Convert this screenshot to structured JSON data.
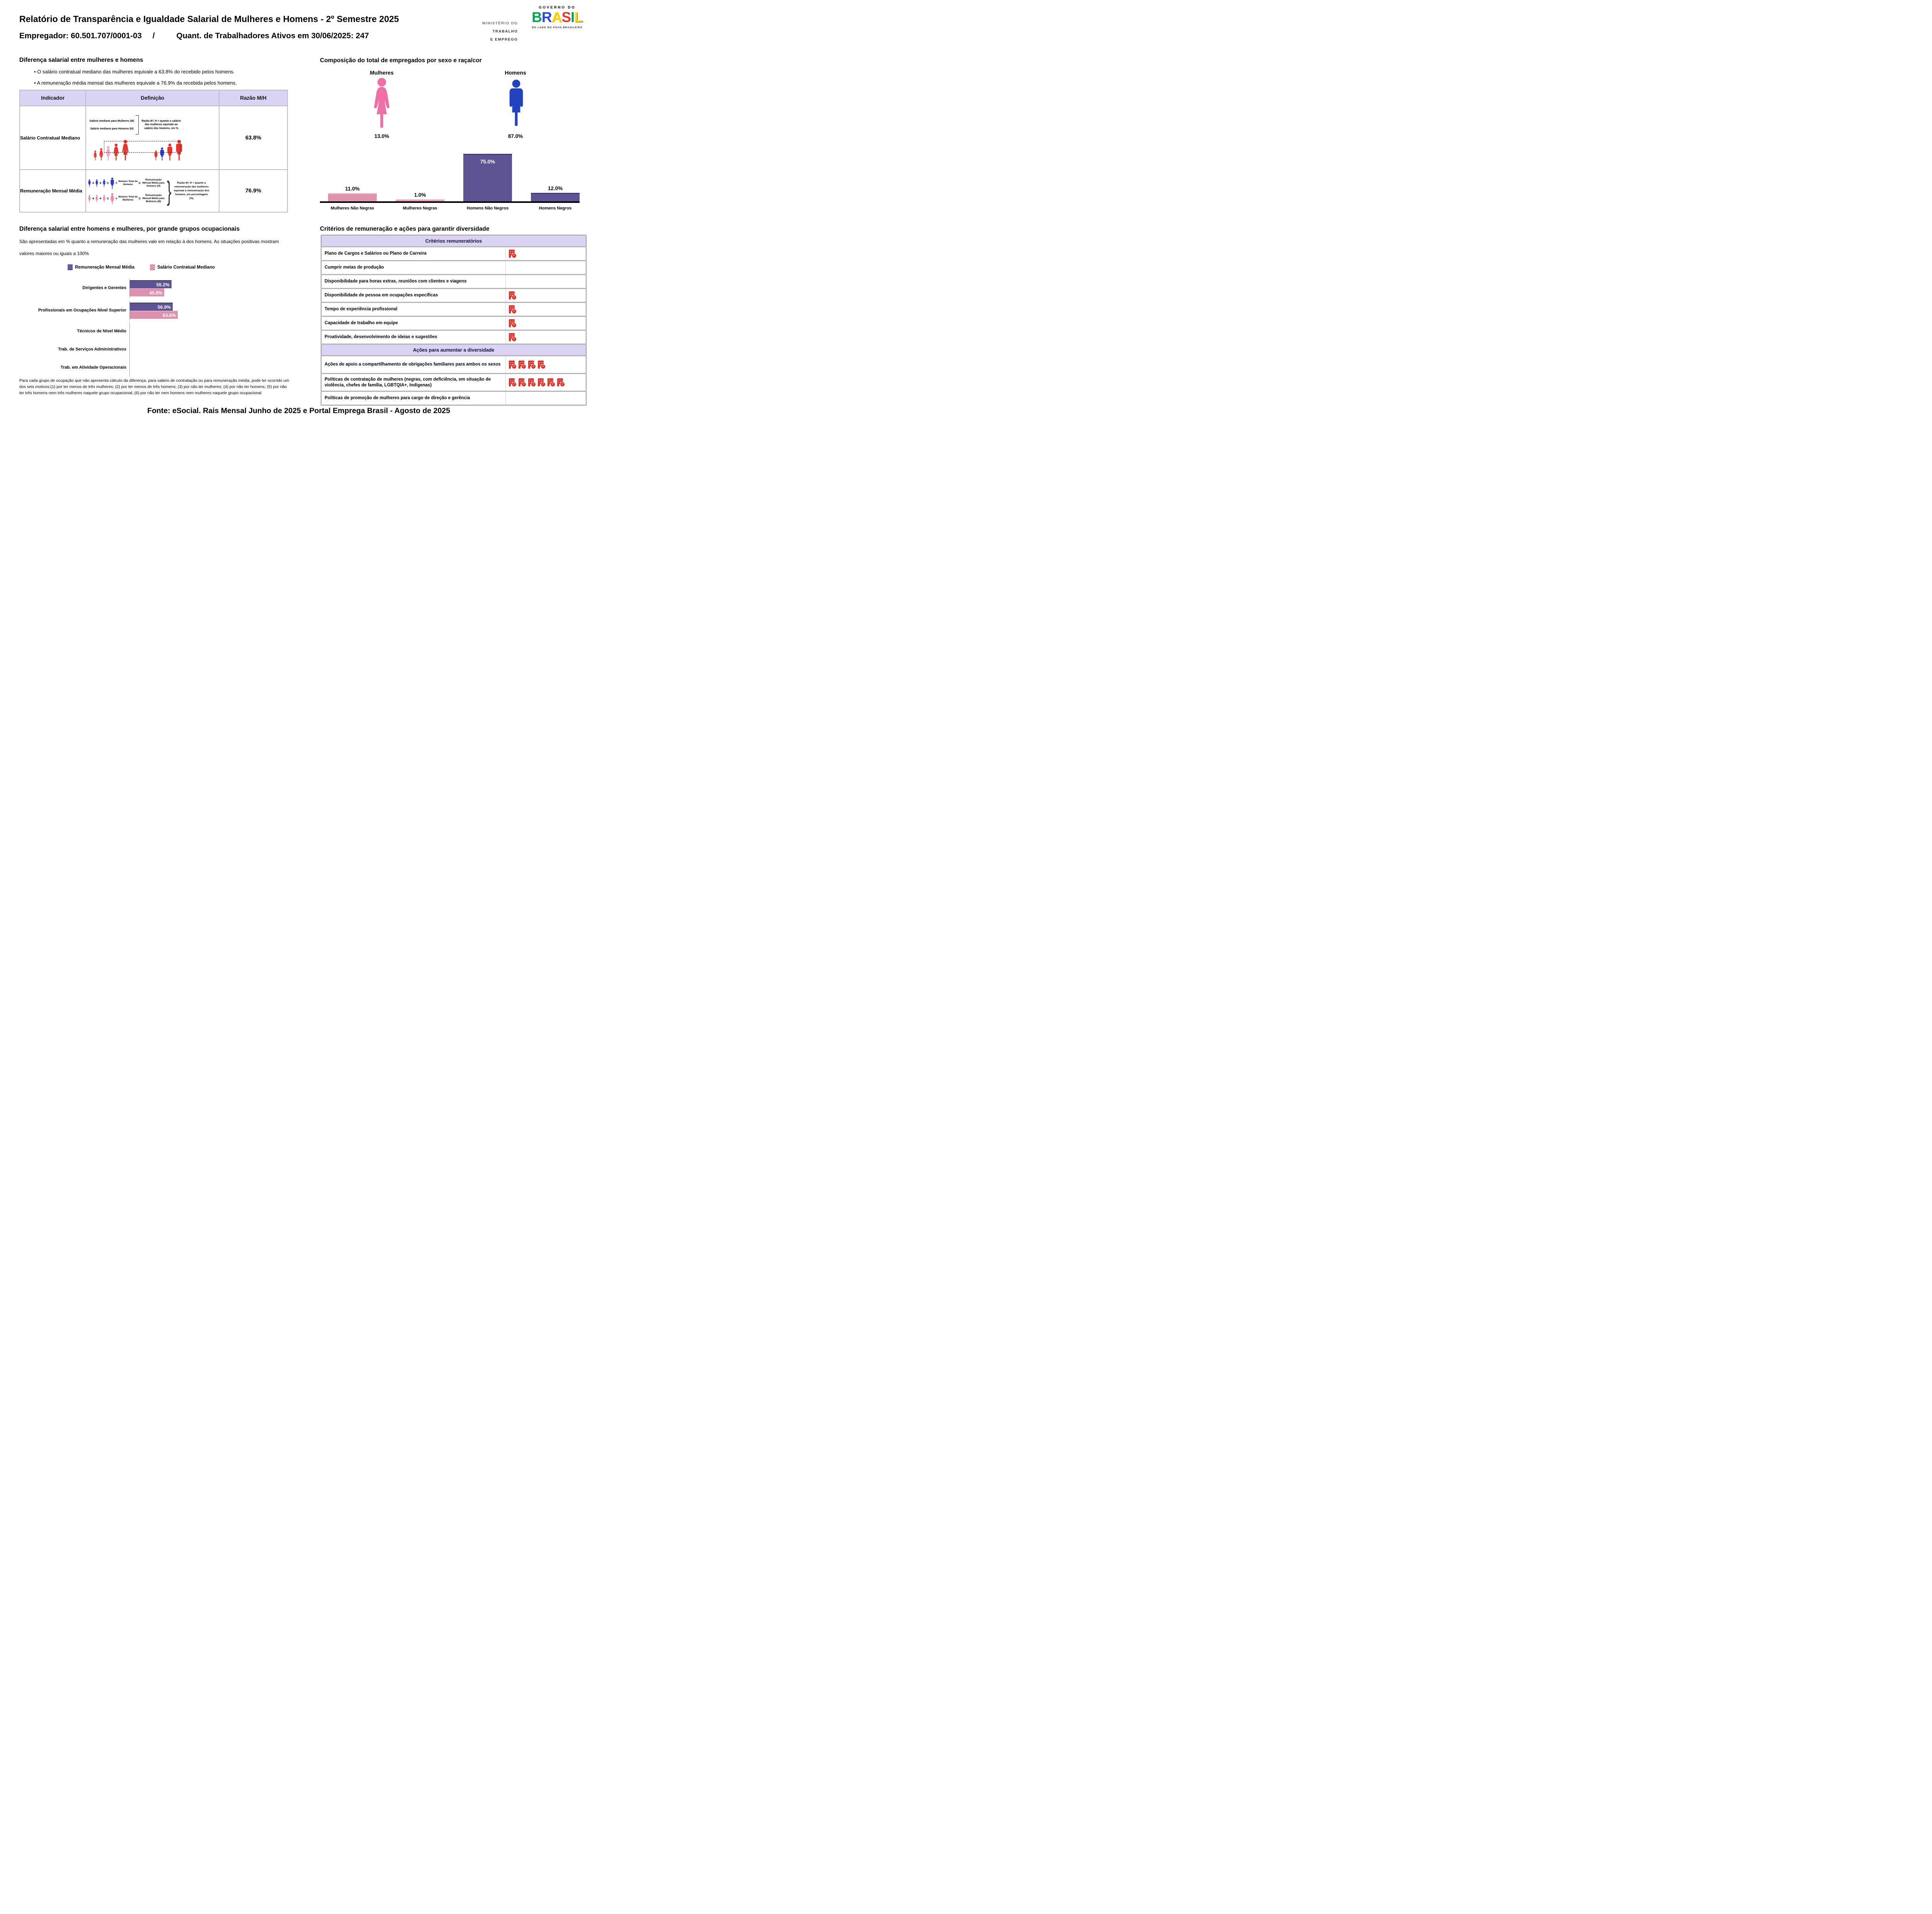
{
  "header": {
    "title": "Relatório de Transparência e Igualdade Salarial de Mulheres e Homens - 2º Semestre 2025",
    "employer": "Empregador: 60.501.707/0001-03",
    "separator": "/",
    "workers": "Quant. de Trabalhadores Ativos em 30/06/2025: 247"
  },
  "logos": {
    "ministry_line1": "MINISTÉRIO DO",
    "ministry_line2": "TRABALHO",
    "ministry_line3": "E EMPREGO",
    "gov_top": "GOVERNO DO",
    "gov_letters": [
      "B",
      "R",
      "A",
      "S",
      "I",
      "L"
    ],
    "gov_tagline": "DO LADO DO POVO BRASILEIRO",
    "brand_colors": {
      "green": "#00a651",
      "blue": "#2b46d9",
      "yellow": "#ffd400",
      "red": "#e23a2e"
    }
  },
  "salary_gap": {
    "heading": "Diferença salarial entre mulheres e homens",
    "bullets": [
      "• O salário contratual mediano das mulheres equivale a 63.8% do recebido pelos homens.",
      "• A remuneração média mensal das mulheres equivale a 76.9% da recebida pelos homens."
    ],
    "table": {
      "headers": [
        "Indicador",
        "Definição",
        "Razão M/H"
      ],
      "rows": [
        {
          "indicator": "Salário Contratual Mediano",
          "ratio": "63.8%",
          "diagram": {
            "line_m": "Salário mediano para Mulheres (M)",
            "line_h": "Salário mediano para Homens (H)",
            "explain": "Razão M / H = quanto o salário das mulheres equivale ao salário dos homens, em %"
          }
        },
        {
          "indicator": "Remuneração Mensal Média",
          "ratio": "76.9%",
          "diagram": {
            "h_label1": "Número Total de Homens",
            "h_label2": "Remuneração Mensal Média para Homens (H)",
            "m_label1": "Número Total de Mulheres",
            "m_label2": "Remuneração Mensal Média para Mulheres (M)",
            "explain": "Razão M / H = quanto a remuneração das mulheres equivale à remuneração dos homens, em porcentagem (%)",
            "plus": "+",
            "equals": "=",
            "divide": "÷"
          }
        }
      ]
    }
  },
  "composition": {
    "heading": "Composição do total de empregados por sexo e raça/cor",
    "female": {
      "label": "Mulheres",
      "value": "13.0%"
    },
    "male": {
      "label": "Homens",
      "value": "87.0%"
    }
  },
  "occupational": {
    "heading": "Diferença salarial entre homens e mulheres, por grande grupos ocupacionais",
    "description": "São apresentadas em % quanto a remuneração das mulheres vale em relação à dos homens. As situações positivas mostram valores maiores ou iguais a 100%",
    "footnote": "Para cada grupo de ocupação que não apresenta cálculo da diferença, para salário de contratação ou para remuneração média, pode ter ocorrido um dos seis motivos:(1) por ter menos de três mulheres; (2) por ter menos de três homens; (3) por não ter mulheres; (4) por não ter homens; (5) por não ter três homens nem três mulheres naquele grupo ocupacional; (6) por não ter nem homens nem mulheres naquele grupo ocupacional"
  },
  "criteria": {
    "heading": "Critérios de remuneração e ações para garantir diversidade",
    "section1": "Critérios remuneratórios",
    "rows1": [
      {
        "label": "Plano de Cargos e Salários ou Plano de Carreira",
        "checks": 1
      },
      {
        "label": "Cumprir metas de produção",
        "checks": 0
      },
      {
        "label": "Disponibilidade para horas extras, reuniões com clientes e viagens",
        "checks": 0
      },
      {
        "label": "Disponibilidade de pessoa em ocupações específicas",
        "checks": 1
      },
      {
        "label": "Tempo de experiência profissional",
        "checks": 1
      },
      {
        "label": "Capacidade de trabalho em equipe",
        "checks": 1
      },
      {
        "label": "Proatividade, desenvolvimento de ideias e sugestões",
        "checks": 1
      }
    ],
    "section2": "Ações para aumentar a diversidade",
    "rows2": [
      {
        "label": "Ações de apoio a compartilhamento de obrigações familiares para ambos os sexos",
        "checks": 4
      },
      {
        "label": "Políticas de contratação de mulheres (negras, com deficiência, em situação de violência, chefes de família, LGBTQIA+, Indígenas)",
        "checks": 6
      },
      {
        "label": "Políticas de promoção de mulheres para cargo de direção e gerência",
        "checks": 0
      }
    ]
  },
  "footer": "Fonte: eSocial. Rais Mensal Junho de 2025 e Portal Emprega Brasil - Agosto de 2025",
  "chart_data": [
    {
      "id": "composition-by-sex-race",
      "type": "bar",
      "title": "Composição do total de empregados por sexo e raça/cor",
      "categories": [
        "Mulheres Não Negras",
        "Mulheres Negras",
        "Homens Não Negros",
        "Homens Negros"
      ],
      "values": [
        11.0,
        1.0,
        75.0,
        12.0
      ],
      "value_labels": [
        "11.0%",
        "1.0%",
        "75.0%",
        "12.0%"
      ],
      "bar_colors": [
        "#df93ad",
        "#df93ad",
        "#5e5494",
        "#5e5494"
      ],
      "summary_values": {
        "Mulheres": 13.0,
        "Homens": 87.0
      },
      "xlabel": "",
      "ylabel": "",
      "ylim": [
        0,
        80
      ],
      "grid": false
    },
    {
      "id": "gap-by-occupational-group",
      "type": "bar-horizontal",
      "title": "Diferença salarial entre homens e mulheres, por grande grupos ocupacionais",
      "categories": [
        "Dirigentes e Gerentes",
        "Profissionais em Ocupações Nível Superior",
        "Técnicos de Nível Médio",
        "Trab. de Serviços Administrativos",
        "Trab. em Atividade Operacionais"
      ],
      "series": [
        {
          "name": "Remuneração Mensal Média",
          "color": "#5e5494",
          "values": [
            55.2,
            56.9,
            null,
            null,
            null
          ],
          "value_labels": [
            "55.2%",
            "56.9%",
            "",
            "",
            ""
          ]
        },
        {
          "name": "Salário Contratual Mediano",
          "color": "#dc92ac",
          "values": [
            45.8,
            63.6,
            null,
            null,
            null
          ],
          "value_labels": [
            "45.8%",
            "63.6%",
            "",
            "",
            ""
          ]
        }
      ],
      "xlim": [
        0,
        100
      ],
      "legend_position": "top",
      "grid": false
    }
  ]
}
